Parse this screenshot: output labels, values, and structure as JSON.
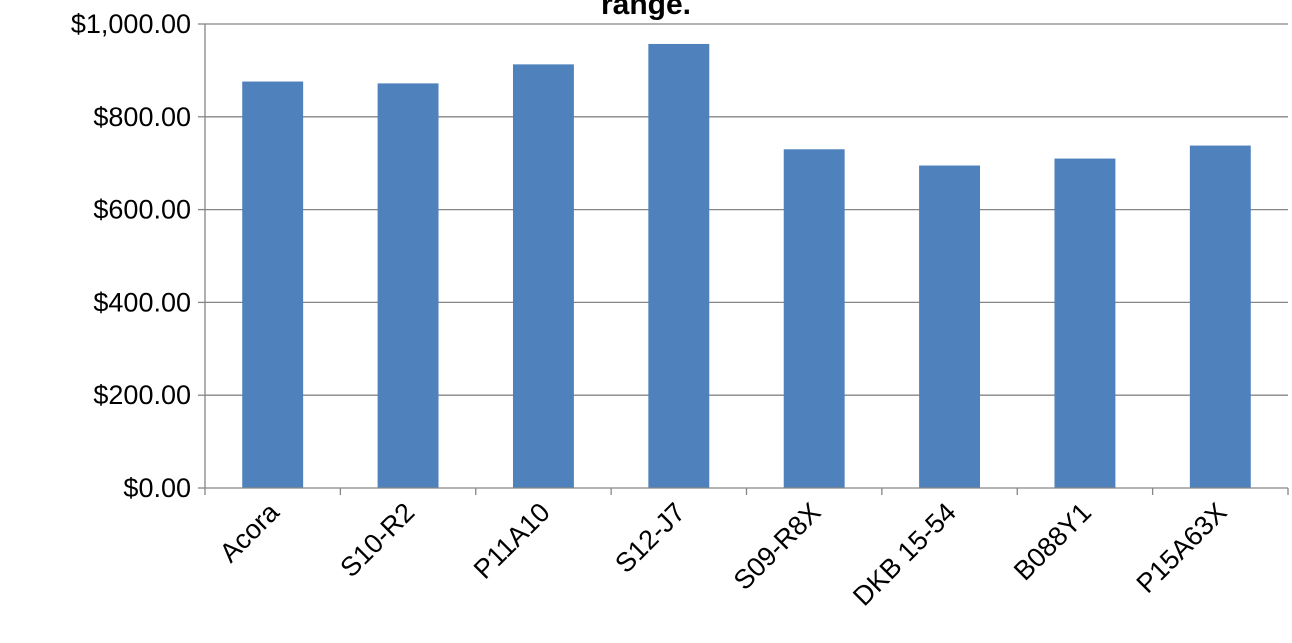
{
  "chart_data": {
    "type": "bar",
    "title": "range.",
    "categories": [
      "Acora",
      "S10-R2",
      "P11A10",
      "S12-J7",
      "S09-R8X",
      "DKB 15-54",
      "B088Y1",
      "P15A63X"
    ],
    "values": [
      876,
      872,
      913,
      957,
      730,
      695,
      710,
      738
    ],
    "ylim": [
      0,
      1000
    ],
    "yticks": [
      0,
      200,
      400,
      600,
      800,
      1000
    ],
    "ytick_labels": [
      "$0.00",
      "$200.00",
      "$400.00",
      "$600.00",
      "$800.00",
      "$1,000.00"
    ],
    "xlabel": "",
    "ylabel": "",
    "grid": true,
    "legend": "none",
    "colors": {
      "bar": "#4f81bd",
      "grid": "#868686",
      "axis": "#868686"
    }
  }
}
